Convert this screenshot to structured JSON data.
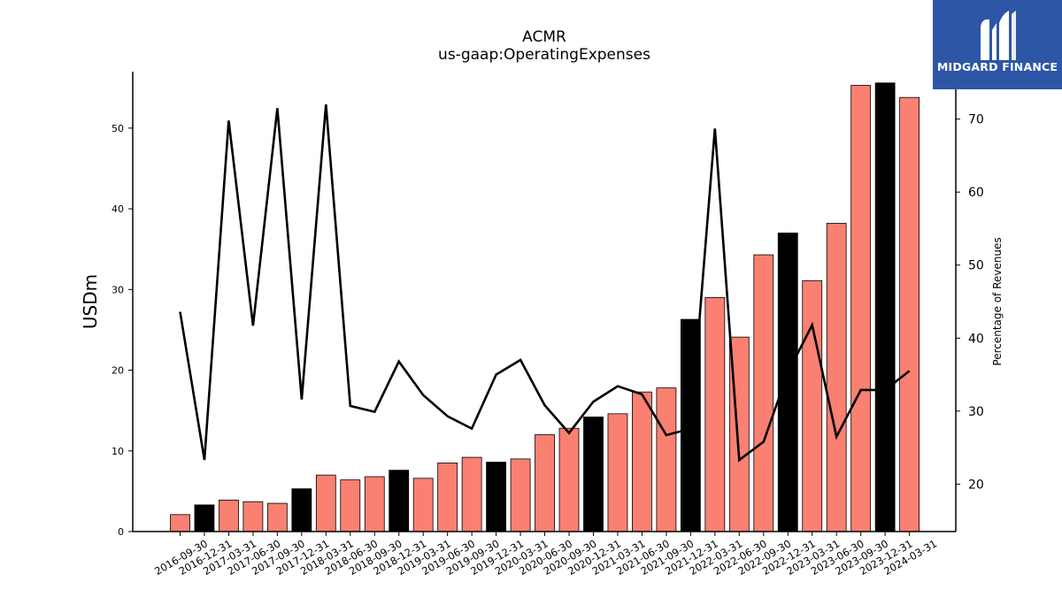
{
  "title": "ACMR",
  "subtitle": "us-gaap:OperatingExpenses",
  "logo": {
    "brand_text": "MIDGARD FINANCE"
  },
  "colors": {
    "bar_default": "#fa8072",
    "bar_highlight": "#000000",
    "line": "#000000",
    "logo_bg": "#2d56a7"
  },
  "chart_data": {
    "type": "bar",
    "categories": [
      "2016-09-30",
      "2016-12-31",
      "2017-03-31",
      "2017-06-30",
      "2017-09-30",
      "2017-12-31",
      "2018-03-31",
      "2018-06-30",
      "2018-09-30",
      "2018-12-31",
      "2019-03-31",
      "2019-06-30",
      "2019-09-30",
      "2019-12-31",
      "2020-03-31",
      "2020-06-30",
      "2020-09-30",
      "2020-12-31",
      "2021-03-31",
      "2021-06-30",
      "2021-09-30",
      "2021-12-31",
      "2022-03-31",
      "2022-06-30",
      "2022-09-30",
      "2022-12-31",
      "2023-03-31",
      "2023-06-30",
      "2023-09-30",
      "2023-12-31",
      "2024-03-31"
    ],
    "series": [
      {
        "axis": "left",
        "kind": "bar",
        "values": [
          2.1,
          3.3,
          3.9,
          3.7,
          3.5,
          5.3,
          7.0,
          6.4,
          6.8,
          7.6,
          6.6,
          8.5,
          9.2,
          8.6,
          9.0,
          12.0,
          12.8,
          14.2,
          14.6,
          17.3,
          17.8,
          26.3,
          29.0,
          24.1,
          34.3,
          37.0,
          31.1,
          38.2,
          55.3,
          55.6,
          53.8
        ],
        "highlight": [
          false,
          true,
          false,
          false,
          false,
          true,
          false,
          false,
          false,
          true,
          false,
          false,
          false,
          true,
          false,
          false,
          false,
          true,
          false,
          false,
          false,
          true,
          false,
          false,
          false,
          true,
          false,
          false,
          false,
          true,
          false
        ]
      },
      {
        "axis": "right",
        "kind": "line",
        "values": [
          43.6,
          23.3,
          69.8,
          41.7,
          71.5,
          31.6,
          72.0,
          30.7,
          29.9,
          36.8,
          32.2,
          29.3,
          27.6,
          35.0,
          37.0,
          30.8,
          27.0,
          31.3,
          33.4,
          32.3,
          26.7,
          27.6,
          68.7,
          23.3,
          25.8,
          35.3,
          41.8,
          26.5,
          32.9,
          32.9,
          35.5
        ]
      }
    ],
    "ylabel": "USDm",
    "y2label": "Percentage of Revenues",
    "ylim": [
      0,
      57
    ],
    "y2lim": [
      13.5,
      76.5
    ],
    "yticks": [
      0,
      10,
      20,
      30,
      40,
      50
    ],
    "y2ticks": [
      20,
      30,
      40,
      50,
      60,
      70
    ],
    "grid": false
  }
}
